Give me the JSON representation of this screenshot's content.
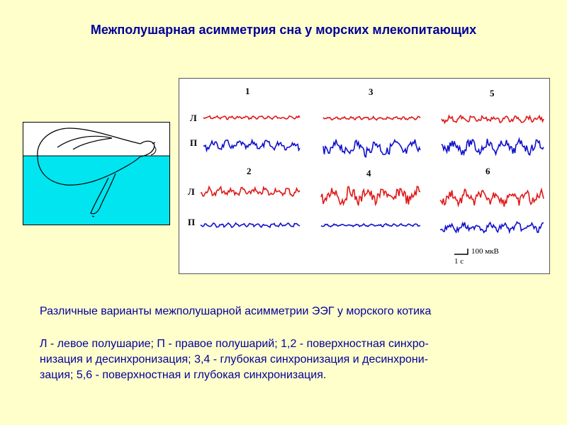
{
  "title": "Межполушарная асимметрия сна у морских млекопитающих",
  "eeg": {
    "panels": [
      {
        "number": "1"
      },
      {
        "number": "2"
      },
      {
        "number": "3"
      },
      {
        "number": "4"
      },
      {
        "number": "5"
      },
      {
        "number": "6"
      }
    ],
    "left_label": "Л",
    "right_label": "П",
    "scale_amplitude": "100 мкВ",
    "scale_time": "1 с",
    "colors": {
      "left": "#E01818",
      "right": "#1010CC"
    }
  },
  "caption": "Различные варианты межполушарной асимметрии ЭЭГ у морского котика",
  "legend_lines": [
    "Л - левое полушарие; П - правое полушарий; 1,2 - поверхностная синхро-",
    "низация и десинхронизация; 3,4 - глубокая синхронизация и десинхрони-",
    "зация; 5,6 - поверхностная и глубокая синхронизация."
  ]
}
